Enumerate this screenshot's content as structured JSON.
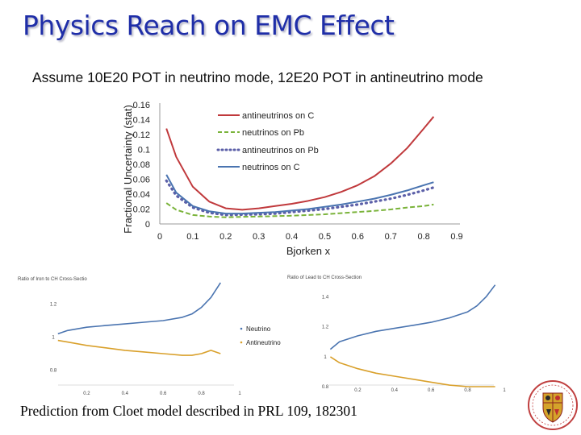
{
  "slide": {
    "title": "Physics Reach on EMC Effect",
    "subtitle": "Assume 10E20 POT in neutrino mode, 12E20 POT in antineutrino mode",
    "caption": "Prediction from Cloet model described in PRL 109, 182301"
  },
  "chart_data": [
    {
      "type": "line",
      "ylabel": "Fractional Uncertainty (stat)",
      "xlabel": "Bjorken x",
      "xlim": [
        0,
        0.9
      ],
      "ylim": [
        0,
        0.16
      ],
      "xticks": [
        "0",
        "0.1",
        "0.2",
        "0.3",
        "0.4",
        "0.5",
        "0.6",
        "0.7",
        "0.8",
        "0.9"
      ],
      "yticks": [
        "0",
        "0.02",
        "0.04",
        "0.06",
        "0.08",
        "0.1",
        "0.12",
        "0.14",
        "0.16"
      ],
      "legend": [
        "antineutrinos on C",
        "neutrinos on Pb",
        "antineutrinos on Pb",
        "neutrinos on C"
      ],
      "series": [
        {
          "name": "antineutrinos on C",
          "color": "#c0393c",
          "style": "solid",
          "x": [
            0.02,
            0.05,
            0.1,
            0.15,
            0.2,
            0.25,
            0.3,
            0.35,
            0.4,
            0.45,
            0.5,
            0.55,
            0.6,
            0.65,
            0.7,
            0.75,
            0.8,
            0.83
          ],
          "y": [
            0.128,
            0.09,
            0.05,
            0.03,
            0.021,
            0.019,
            0.021,
            0.024,
            0.027,
            0.031,
            0.036,
            0.043,
            0.052,
            0.064,
            0.081,
            0.102,
            0.128,
            0.144
          ]
        },
        {
          "name": "neutrinos on Pb",
          "color": "#7ab33a",
          "style": "dashed",
          "x": [
            0.02,
            0.05,
            0.1,
            0.15,
            0.2,
            0.25,
            0.3,
            0.35,
            0.4,
            0.45,
            0.5,
            0.55,
            0.6,
            0.65,
            0.7,
            0.75,
            0.8,
            0.83
          ],
          "y": [
            0.028,
            0.019,
            0.012,
            0.01,
            0.009,
            0.0095,
            0.01,
            0.0105,
            0.011,
            0.012,
            0.013,
            0.0145,
            0.016,
            0.0175,
            0.0195,
            0.022,
            0.024,
            0.026
          ]
        },
        {
          "name": "antineutrinos on Pb",
          "color": "#5b5fa8",
          "style": "dotted",
          "x": [
            0.02,
            0.05,
            0.1,
            0.15,
            0.2,
            0.25,
            0.3,
            0.35,
            0.4,
            0.45,
            0.5,
            0.55,
            0.6,
            0.65,
            0.7,
            0.75,
            0.8,
            0.83
          ],
          "y": [
            0.058,
            0.038,
            0.022,
            0.015,
            0.012,
            0.0125,
            0.013,
            0.014,
            0.016,
            0.018,
            0.02,
            0.023,
            0.026,
            0.03,
            0.034,
            0.039,
            0.045,
            0.049
          ]
        },
        {
          "name": "neutrinos on C",
          "color": "#4a74b0",
          "style": "solid",
          "x": [
            0.02,
            0.05,
            0.1,
            0.15,
            0.2,
            0.25,
            0.3,
            0.35,
            0.4,
            0.45,
            0.5,
            0.55,
            0.6,
            0.65,
            0.7,
            0.75,
            0.8,
            0.83
          ],
          "y": [
            0.066,
            0.042,
            0.024,
            0.017,
            0.014,
            0.014,
            0.015,
            0.016,
            0.018,
            0.02,
            0.023,
            0.026,
            0.03,
            0.034,
            0.039,
            0.045,
            0.052,
            0.056
          ]
        }
      ]
    },
    {
      "type": "line",
      "title": "Ratio of Iron to CH Cross-Sectio",
      "xlim": [
        0,
        1
      ],
      "ylim": [
        0.7,
        1.3
      ],
      "xticks": [
        "0.2",
        "0.4",
        "0.6",
        "0.8",
        "1"
      ],
      "yticks": [
        "0.8",
        "1",
        "1.2"
      ],
      "legend": [
        "Neutrino",
        "Antineutrino"
      ],
      "series": [
        {
          "name": "Neutrino",
          "color": "#4a74b0",
          "x": [
            0.05,
            0.1,
            0.2,
            0.3,
            0.4,
            0.5,
            0.6,
            0.7,
            0.75,
            0.8,
            0.85,
            0.9
          ],
          "y": [
            1.02,
            1.04,
            1.06,
            1.07,
            1.08,
            1.09,
            1.1,
            1.12,
            1.14,
            1.18,
            1.24,
            1.33
          ]
        },
        {
          "name": "Antineutrino",
          "color": "#d9a02b",
          "x": [
            0.05,
            0.1,
            0.2,
            0.3,
            0.4,
            0.5,
            0.6,
            0.7,
            0.75,
            0.8,
            0.85,
            0.9
          ],
          "y": [
            0.98,
            0.97,
            0.95,
            0.935,
            0.92,
            0.91,
            0.9,
            0.89,
            0.89,
            0.9,
            0.92,
            0.9
          ]
        }
      ]
    },
    {
      "type": "line",
      "title": "Ratio of Lead to CH Cross-Section",
      "xlim": [
        0,
        1
      ],
      "ylim": [
        0.8,
        1.5
      ],
      "xticks": [
        "0.2",
        "0.4",
        "0.6",
        "0.8",
        "1"
      ],
      "yticks": [
        "0.8",
        "1",
        "1.2",
        "1.4"
      ],
      "series": [
        {
          "name": "Neutrino",
          "color": "#4a74b0",
          "x": [
            0.05,
            0.1,
            0.2,
            0.3,
            0.4,
            0.5,
            0.6,
            0.7,
            0.8,
            0.85,
            0.9,
            0.95
          ],
          "y": [
            1.05,
            1.1,
            1.14,
            1.17,
            1.19,
            1.21,
            1.23,
            1.26,
            1.3,
            1.34,
            1.4,
            1.48
          ]
        },
        {
          "name": "Antineutrino",
          "color": "#d9a02b",
          "x": [
            0.05,
            0.1,
            0.2,
            0.3,
            0.4,
            0.5,
            0.6,
            0.7,
            0.8,
            0.85,
            0.9,
            0.95
          ],
          "y": [
            1.0,
            0.96,
            0.92,
            0.89,
            0.87,
            0.85,
            0.83,
            0.81,
            0.8,
            0.8,
            0.8,
            0.8
          ]
        }
      ]
    }
  ]
}
